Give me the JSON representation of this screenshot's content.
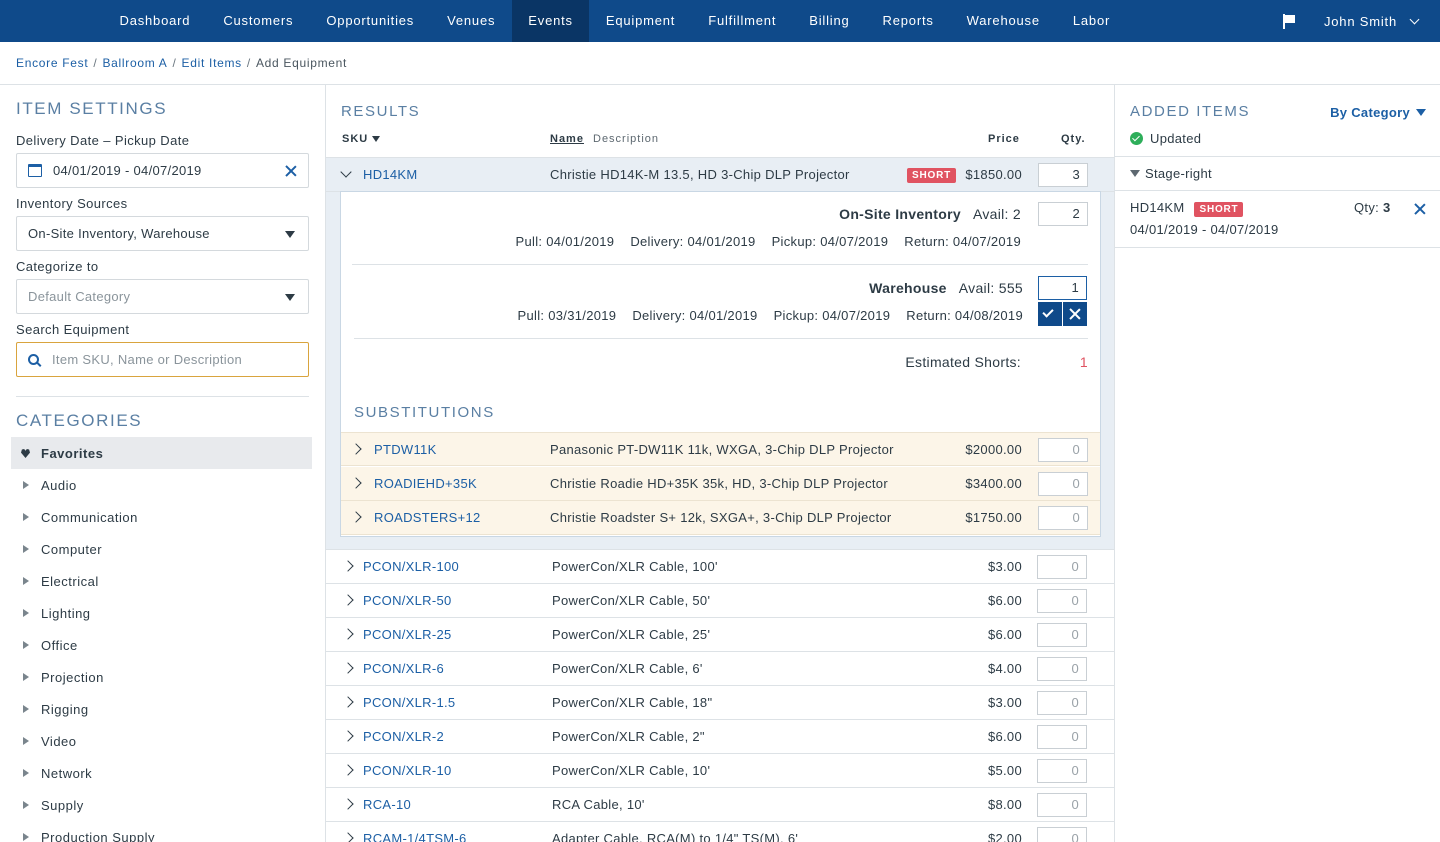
{
  "nav": {
    "items": [
      "Dashboard",
      "Customers",
      "Opportunities",
      "Venues",
      "Events",
      "Equipment",
      "Fulfillment",
      "Billing",
      "Reports",
      "Warehouse",
      "Labor"
    ],
    "active": "Events",
    "user": "John Smith"
  },
  "breadcrumb": {
    "items": [
      "Encore Fest",
      "Ballroom A",
      "Edit Items"
    ],
    "current": "Add Equipment",
    "separator": "/"
  },
  "settings": {
    "title": "ITEM SETTINGS",
    "date_label": "Delivery Date – Pickup Date",
    "date_value": "04/01/2019 - 04/07/2019",
    "sources_label": "Inventory Sources",
    "sources_value": "On-Site Inventory, Warehouse",
    "categorize_label": "Categorize to",
    "categorize_placeholder": "Default Category",
    "search_label": "Search Equipment",
    "search_placeholder": "Item SKU, Name or Description"
  },
  "categories": {
    "title": "CATEGORIES",
    "items": [
      "Favorites",
      "Audio",
      "Communication",
      "Computer",
      "Electrical",
      "Lighting",
      "Office",
      "Projection",
      "Rigging",
      "Video",
      "Network",
      "Supply",
      "Production Supply"
    ]
  },
  "results": {
    "title": "RESULTS",
    "col_sku": "SKU",
    "col_name": "Name",
    "col_desc": "Description",
    "col_price": "Price",
    "col_qty": "Qty.",
    "expanded": {
      "sku": "HD14KM",
      "desc": "Christie HD14K-M 13.5, HD 3-Chip DLP Projector",
      "badge": "SHORT",
      "price": "$1850.00",
      "qty": "3",
      "onsite": {
        "name": "On-Site Inventory",
        "avail": "Avail: 2",
        "qty": "2",
        "pull": "Pull: 04/01/2019",
        "delivery": "Delivery: 04/01/2019",
        "pickup": "Pickup: 04/07/2019",
        "return": "Return: 04/07/2019"
      },
      "warehouse": {
        "name": "Warehouse",
        "avail": "Avail: 555",
        "qty": "1",
        "pull": "Pull: 03/31/2019",
        "delivery": "Delivery: 04/01/2019",
        "pickup": "Pickup: 04/07/2019",
        "return": "Return: 04/08/2019"
      },
      "shorts_label": "Estimated Shorts:",
      "shorts_value": "1",
      "subs_title": "SUBSTITUTIONS",
      "subs": [
        {
          "sku": "PTDW11K",
          "desc": "Panasonic PT-DW11K 11k, WXGA, 3-Chip DLP Projector",
          "price": "$2000.00",
          "qty": "0"
        },
        {
          "sku": "ROADIEHD+35K",
          "desc": "Christie Roadie HD+35K 35k, HD, 3-Chip DLP Projector",
          "price": "$3400.00",
          "qty": "0"
        },
        {
          "sku": "ROADSTERS+12",
          "desc": "Christie Roadster S+ 12k, SXGA+, 3-Chip DLP Projector",
          "price": "$1750.00",
          "qty": "0"
        }
      ]
    },
    "rows": [
      {
        "sku": "PCON/XLR-100",
        "desc": "PowerCon/XLR Cable, 100'",
        "price": "$3.00",
        "qty": "0"
      },
      {
        "sku": "PCON/XLR-50",
        "desc": "PowerCon/XLR Cable, 50'",
        "price": "$6.00",
        "qty": "0"
      },
      {
        "sku": "PCON/XLR-25",
        "desc": "PowerCon/XLR Cable, 25'",
        "price": "$6.00",
        "qty": "0"
      },
      {
        "sku": "PCON/XLR-6",
        "desc": "PowerCon/XLR Cable, 6'",
        "price": "$4.00",
        "qty": "0"
      },
      {
        "sku": "PCON/XLR-1.5",
        "desc": "PowerCon/XLR Cable, 18\"",
        "price": "$3.00",
        "qty": "0"
      },
      {
        "sku": "PCON/XLR-2",
        "desc": "PowerCon/XLR Cable, 2\"",
        "price": "$6.00",
        "qty": "0"
      },
      {
        "sku": "PCON/XLR-10",
        "desc": "PowerCon/XLR Cable, 10'",
        "price": "$5.00",
        "qty": "0"
      },
      {
        "sku": "RCA-10",
        "desc": "RCA Cable, 10'",
        "price": "$8.00",
        "qty": "0"
      },
      {
        "sku": "RCAM-1/4TSM-6",
        "desc": "Adapter Cable, RCA(M) to 1/4\" TS(M), 6'",
        "price": "$2.00",
        "qty": "0"
      }
    ]
  },
  "added": {
    "title": "ADDED ITEMS",
    "sort": "By Category",
    "status": "Updated",
    "group": "Stage-right",
    "item": {
      "sku": "HD14KM",
      "badge": "SHORT",
      "qty_label": "Qty:",
      "qty": "3",
      "dates": "04/01/2019 - 04/07/2019"
    }
  },
  "colors": {
    "nav": "#0f4a8a",
    "accent": "#1c5fa5",
    "short": "#e05361",
    "sub_bg": "#fcf5e8",
    "success": "#2eae5a"
  }
}
